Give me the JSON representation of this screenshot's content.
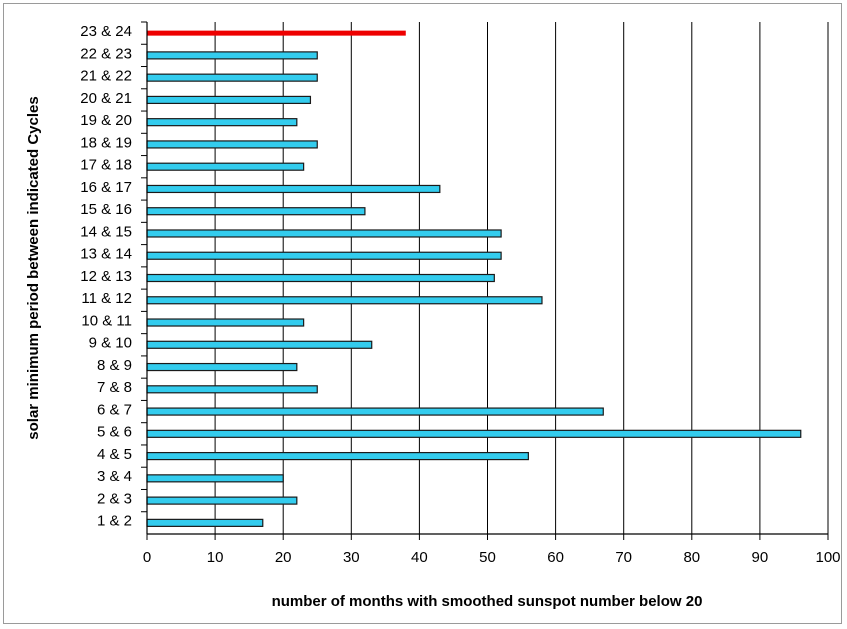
{
  "chart_data": {
    "type": "bar",
    "orientation": "horizontal",
    "title": "",
    "xlabel": "number of months with smoothed sunspot number below 20",
    "ylabel": "solar minimum period between indicated Cycles",
    "xlim": [
      0,
      100
    ],
    "xticks": [
      "0",
      "10",
      "20",
      "30",
      "40",
      "50",
      "60",
      "70",
      "80",
      "90",
      "100"
    ],
    "grid": "vertical",
    "legend": "none",
    "categories": [
      "1 & 2",
      "2 & 3",
      "3 & 4",
      "4 & 5",
      "5 & 6",
      "6 & 7",
      "7 & 8",
      "8 & 9",
      "9 & 10",
      "10 & 11",
      "11 & 12",
      "12 & 13",
      "13 & 14",
      "14 & 15",
      "15 & 16",
      "16 & 17",
      "17 & 18",
      "18 & 19",
      "19 & 20",
      "20 & 21",
      "21 & 22",
      "22 & 23",
      "23 & 24"
    ],
    "values": [
      17,
      22,
      20,
      56,
      96,
      67,
      25,
      22,
      33,
      23,
      58,
      51,
      52,
      52,
      32,
      43,
      23,
      25,
      22,
      24,
      25,
      25,
      38
    ],
    "colors": {
      "default_bar": "#33ccee",
      "highlight_bar": "#ee0000",
      "highlight_category": "23 & 24",
      "bar_outline": "#1a1a1a",
      "grid": "#000000"
    }
  }
}
